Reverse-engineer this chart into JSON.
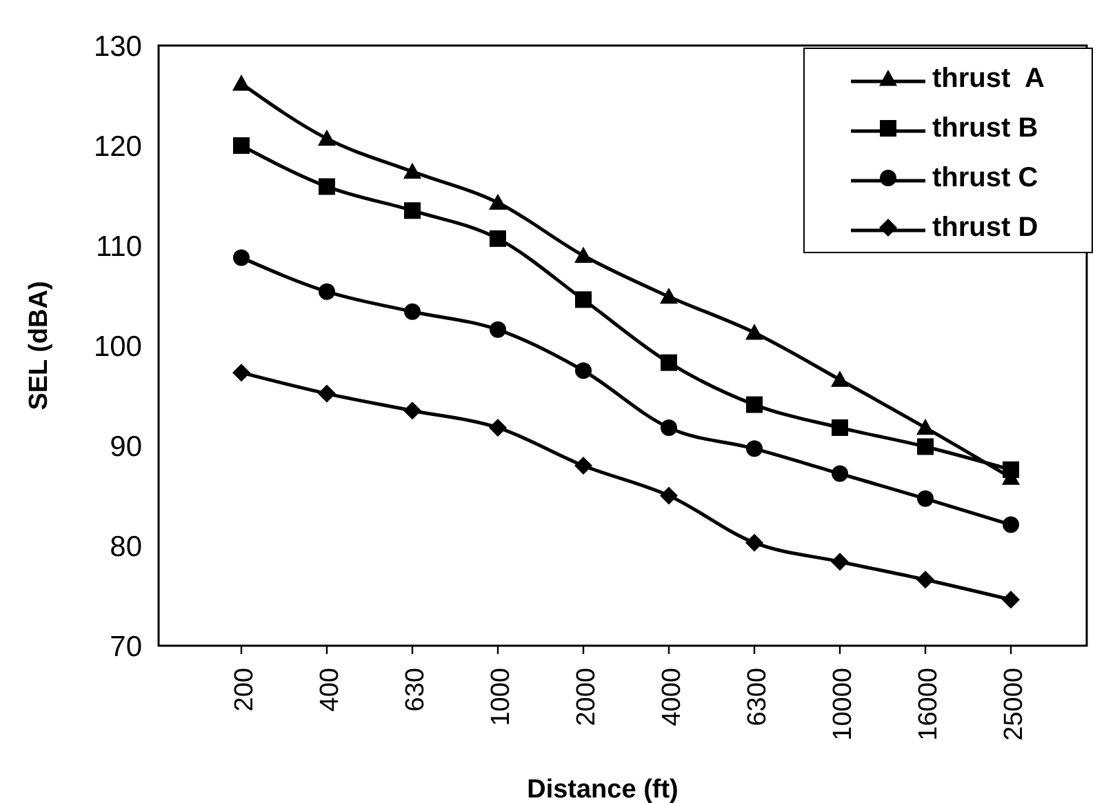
{
  "chart_data": {
    "type": "line",
    "xlabel": "Distance (ft)",
    "ylabel": "SEL (dBA)",
    "categories": [
      "200",
      "400",
      "630",
      "1000",
      "2000",
      "4000",
      "6300",
      "10000",
      "16000",
      "25000"
    ],
    "ylim": [
      70,
      130
    ],
    "yticks": [
      70,
      80,
      90,
      100,
      110,
      120,
      130
    ],
    "grid": false,
    "legend": "top right",
    "series": [
      {
        "name": "thrust  A",
        "color": "#000000",
        "marker": "triangle",
        "values": [
          126.2,
          120.7,
          117.4,
          114.3,
          109.0,
          104.9,
          101.3,
          96.6,
          91.8,
          86.8
        ]
      },
      {
        "name": "thrust B",
        "color": "#000000",
        "marker": "square",
        "values": [
          120.0,
          115.9,
          113.5,
          110.7,
          104.6,
          98.3,
          94.1,
          91.8,
          89.9,
          87.6
        ]
      },
      {
        "name": "thrust C",
        "color": "#000000",
        "marker": "circle",
        "values": [
          108.8,
          105.4,
          103.4,
          101.6,
          97.5,
          91.8,
          89.7,
          87.2,
          84.7,
          82.1
        ]
      },
      {
        "name": "thrust D",
        "color": "#000000",
        "marker": "diamond",
        "values": [
          97.3,
          95.2,
          93.5,
          91.8,
          88.0,
          85.0,
          80.3,
          78.4,
          76.6,
          74.6
        ]
      }
    ]
  }
}
